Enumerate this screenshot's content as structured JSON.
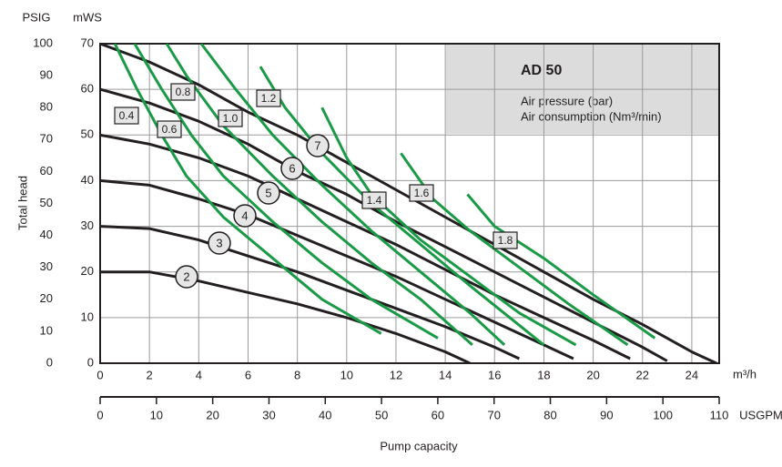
{
  "chart_data": {
    "type": "line",
    "title": "AD 50",
    "legend_lines": [
      "Air pressure (bar)",
      "Air consumption (Nm³/min)"
    ],
    "xlabel": "Pump capacity",
    "ylabel": "Total head",
    "x_unit": "m³/h",
    "x2_unit": "USGPM",
    "y_unit": "mWS",
    "y2_unit": "PSIG",
    "xlim": [
      0,
      25
    ],
    "xticks": [
      0,
      2,
      4,
      6,
      8,
      10,
      12,
      14,
      16,
      18,
      20,
      22,
      24
    ],
    "x2lim": [
      0,
      110
    ],
    "x2ticks": [
      0,
      10,
      20,
      30,
      40,
      50,
      60,
      70,
      80,
      90,
      100,
      110
    ],
    "ylim": [
      0,
      70
    ],
    "yticks": [
      0,
      10,
      20,
      30,
      40,
      50,
      60,
      70
    ],
    "y2lim": [
      0,
      100
    ],
    "y2ticks": [
      0,
      10,
      20,
      30,
      40,
      50,
      60,
      70,
      80,
      90,
      100
    ],
    "grid": true,
    "series": [
      {
        "name": "2",
        "group": "pressure",
        "color": "#231f20",
        "x": [
          0,
          2,
          4,
          6,
          8,
          10,
          12,
          14,
          15
        ],
        "values": [
          20,
          20,
          18,
          15.5,
          13,
          10,
          6.5,
          2.5,
          0
        ]
      },
      {
        "name": "3",
        "group": "pressure",
        "color": "#231f20",
        "x": [
          0,
          2,
          4,
          6,
          8,
          10,
          12,
          14,
          16,
          17
        ],
        "values": [
          30,
          29.5,
          27,
          23.5,
          20,
          16,
          12,
          8,
          3.5,
          1
        ]
      },
      {
        "name": "4",
        "group": "pressure",
        "color": "#231f20",
        "x": [
          0,
          2,
          4,
          6,
          8,
          10,
          12,
          14,
          16,
          18,
          19.2
        ],
        "values": [
          40,
          39,
          36,
          32.5,
          28,
          23.5,
          19,
          14,
          9,
          4,
          1
        ]
      },
      {
        "name": "5",
        "group": "pressure",
        "color": "#231f20",
        "x": [
          0,
          2,
          4,
          6,
          8,
          10,
          12,
          14,
          16,
          18,
          20,
          21.5
        ],
        "values": [
          50,
          48,
          45,
          41,
          36,
          31,
          26,
          20.5,
          15,
          10,
          5,
          1
        ]
      },
      {
        "name": "6",
        "group": "pressure",
        "color": "#231f20",
        "x": [
          0,
          2,
          4,
          6,
          8,
          10,
          12,
          14,
          16,
          18,
          20,
          22,
          23
        ],
        "values": [
          60,
          57,
          53,
          48,
          42,
          37,
          31,
          25.5,
          20,
          14.5,
          9,
          3.5,
          0.5
        ]
      },
      {
        "name": "7",
        "group": "pressure",
        "color": "#231f20",
        "x": [
          0,
          2,
          4,
          6,
          8,
          10,
          12,
          14,
          16,
          18,
          20,
          22,
          24,
          25
        ],
        "values": [
          70,
          66,
          61,
          55,
          50,
          44,
          38,
          32,
          26,
          20,
          14,
          8.5,
          2.5,
          0
        ]
      },
      {
        "name": "0.4",
        "group": "consumption",
        "color": "#1a9a46",
        "x": [
          0.6,
          1.5,
          2.5,
          3.5,
          5,
          7,
          9,
          11.4
        ],
        "values": [
          70,
          60,
          50,
          41,
          32,
          23,
          14,
          6.5
        ]
      },
      {
        "name": "0.6",
        "group": "consumption",
        "color": "#1a9a46",
        "x": [
          1.4,
          2.5,
          3.7,
          5,
          7,
          9,
          11,
          13.7
        ],
        "values": [
          70,
          60,
          50,
          41,
          31,
          22,
          14,
          5.5
        ]
      },
      {
        "name": "0.8",
        "group": "consumption",
        "color": "#1a9a46",
        "x": [
          2.7,
          3.5,
          5,
          7,
          9,
          11,
          13,
          15.1
        ],
        "values": [
          70,
          63,
          52,
          41,
          31,
          22,
          14,
          4
        ]
      },
      {
        "name": "1.0",
        "group": "consumption",
        "color": "#1a9a46",
        "x": [
          4.1,
          5.5,
          7,
          9,
          11,
          13,
          15,
          16.4
        ],
        "values": [
          70,
          60,
          50,
          39,
          29,
          20,
          11,
          4
        ]
      },
      {
        "name": "1.2",
        "group": "consumption",
        "color": "#1a9a46",
        "x": [
          6.5,
          7.5,
          9,
          11,
          13,
          15,
          18
        ],
        "values": [
          65,
          56,
          46,
          35,
          26,
          17,
          4
        ]
      },
      {
        "name": "1.4",
        "group": "consumption",
        "color": "#1a9a46",
        "x": [
          9,
          10,
          11,
          13,
          15,
          17,
          19.3
        ],
        "values": [
          56,
          45,
          37,
          27,
          19,
          11,
          4
        ]
      },
      {
        "name": "1.6",
        "group": "consumption",
        "color": "#1a9a46",
        "x": [
          12.2,
          13.5,
          15,
          17,
          19,
          21.4
        ],
        "values": [
          46,
          36,
          29,
          21,
          13,
          4
        ]
      },
      {
        "name": "1.8",
        "group": "consumption",
        "color": "#1a9a46",
        "x": [
          14.9,
          16,
          18,
          20,
          22.5
        ],
        "values": [
          37,
          30,
          23,
          15,
          5.5
        ]
      }
    ]
  }
}
